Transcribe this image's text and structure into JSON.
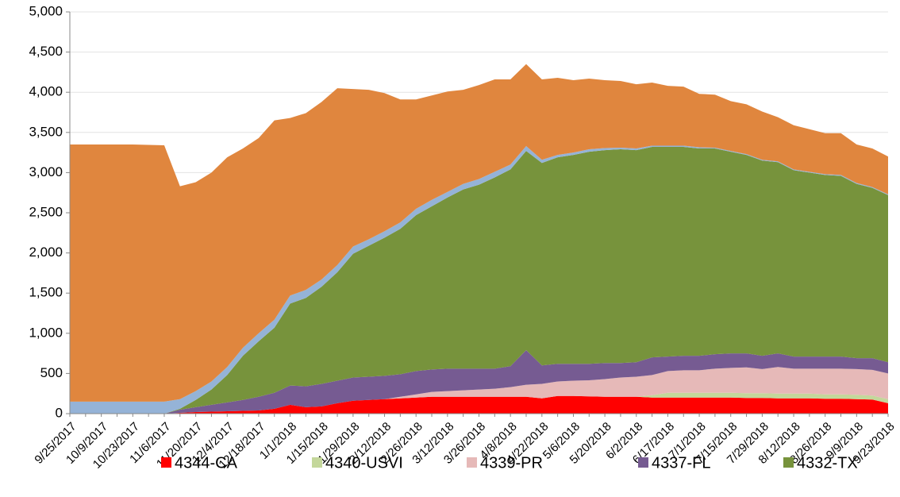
{
  "chart_data": {
    "type": "stacked_area",
    "categories": [
      "9/25/2017",
      null,
      "10/9/2017",
      null,
      "10/23/2017",
      null,
      "11/6/2017",
      null,
      "11/20/2017",
      null,
      "12/4/2017",
      null,
      "12/18/2017",
      null,
      "1/1/2018",
      null,
      "1/15/2018",
      null,
      "1/29/2018",
      null,
      "2/12/2018",
      null,
      "2/26/2018",
      null,
      "3/12/2018",
      null,
      "3/26/2018",
      null,
      "4/8/2018",
      null,
      "4/22/2018",
      null,
      "5/6/2018",
      null,
      "5/20/2018",
      null,
      "6/2/2018",
      null,
      "6/17/2018",
      null,
      "7/1/2018",
      null,
      "7/15/2018",
      null,
      "7/29/2018",
      null,
      "8/12/2018",
      null,
      "8/26/2018",
      null,
      "9/9/2018",
      null,
      "9/23/2018"
    ],
    "series": [
      {
        "name": "4344-CA",
        "color": "#ff0000",
        "values": [
          0,
          0,
          0,
          0,
          0,
          0,
          0,
          10,
          20,
          25,
          30,
          35,
          40,
          60,
          110,
          80,
          90,
          130,
          160,
          170,
          180,
          190,
          200,
          210,
          210,
          210,
          210,
          210,
          210,
          210,
          190,
          220,
          220,
          215,
          210,
          210,
          210,
          200,
          200,
          200,
          200,
          200,
          200,
          195,
          195,
          190,
          190,
          190,
          185,
          185,
          180,
          175,
          130
        ]
      },
      {
        "name": "4340-USVI",
        "color": "#c4d79b",
        "values": [
          0,
          0,
          0,
          0,
          0,
          0,
          0,
          0,
          0,
          0,
          0,
          0,
          0,
          0,
          0,
          0,
          0,
          0,
          0,
          0,
          0,
          0,
          0,
          0,
          0,
          0,
          0,
          0,
          0,
          0,
          0,
          0,
          0,
          0,
          0,
          0,
          0,
          30,
          60,
          60,
          60,
          60,
          60,
          60,
          60,
          60,
          60,
          60,
          55,
          55,
          55,
          50,
          50
        ]
      },
      {
        "name": "4339-PR",
        "color": "#e6b9b8",
        "values": [
          0,
          0,
          0,
          0,
          0,
          0,
          0,
          0,
          0,
          0,
          0,
          0,
          0,
          0,
          0,
          0,
          0,
          0,
          0,
          0,
          0,
          20,
          40,
          60,
          70,
          80,
          90,
          100,
          120,
          150,
          180,
          180,
          190,
          200,
          220,
          240,
          250,
          250,
          270,
          280,
          280,
          300,
          310,
          320,
          300,
          330,
          310,
          310,
          320,
          320,
          320,
          320,
          320
        ]
      },
      {
        "name": "4337-FL",
        "color": "#765b92",
        "values": [
          0,
          0,
          0,
          0,
          0,
          0,
          0,
          40,
          60,
          85,
          110,
          135,
          170,
          200,
          240,
          260,
          280,
          280,
          290,
          290,
          290,
          280,
          290,
          280,
          280,
          270,
          260,
          250,
          260,
          430,
          230,
          220,
          210,
          205,
          200,
          180,
          180,
          220,
          180,
          180,
          180,
          180,
          180,
          175,
          165,
          170,
          150,
          150,
          150,
          150,
          135,
          145,
          140
        ]
      },
      {
        "name": "4332-TX",
        "color": "#77933c",
        "values": [
          0,
          0,
          0,
          0,
          0,
          0,
          0,
          10,
          90,
          190,
          340,
          550,
          690,
          810,
          1020,
          1100,
          1210,
          1350,
          1540,
          1630,
          1720,
          1810,
          1940,
          2030,
          2130,
          2230,
          2290,
          2380,
          2450,
          2480,
          2520,
          2570,
          2600,
          2640,
          2650,
          2660,
          2640,
          2620,
          2610,
          2600,
          2580,
          2560,
          2510,
          2470,
          2430,
          2380,
          2320,
          2290,
          2260,
          2250,
          2170,
          2120,
          2080
        ]
      },
      {
        "color": "#95b3d7",
        "values": [
          150,
          150,
          150,
          150,
          150,
          150,
          150,
          120,
          110,
          100,
          100,
          100,
          100,
          100,
          100,
          100,
          90,
          90,
          90,
          80,
          80,
          80,
          80,
          80,
          70,
          70,
          70,
          70,
          60,
          60,
          40,
          30,
          30,
          30,
          25,
          20,
          20,
          15,
          15,
          15,
          15,
          10,
          10,
          10,
          10,
          10,
          10,
          10,
          10,
          10,
          10,
          10,
          10
        ]
      },
      {
        "color": "#e0863e",
        "values": [
          3200,
          3200,
          3200,
          3200,
          3200,
          3195,
          3190,
          2650,
          2600,
          2600,
          2610,
          2480,
          2430,
          2480,
          2210,
          2200,
          2210,
          2200,
          1960,
          1860,
          1720,
          1530,
          1360,
          1300,
          1250,
          1170,
          1170,
          1150,
          1060,
          1020,
          1000,
          960,
          900,
          880,
          845,
          830,
          800,
          785,
          745,
          735,
          665,
          660,
          620,
          620,
          600,
          550,
          550,
          530,
          510,
          520,
          480,
          480,
          470
        ]
      }
    ],
    "ylim": [
      0,
      5000
    ],
    "yticks": [
      0,
      500,
      {
        "value": 1000,
        "label": "1,000"
      },
      {
        "value": 1500,
        "label": "1,500"
      },
      {
        "value": 2000,
        "label": "2,000"
      },
      {
        "value": 2500,
        "label": "2,500"
      },
      {
        "value": 3000,
        "label": "3,000"
      },
      {
        "value": 3500,
        "label": "3,500"
      },
      {
        "value": 4000,
        "label": "4,000"
      },
      {
        "value": 4500,
        "label": "4,500"
      },
      {
        "value": 5000,
        "label": "5,000"
      }
    ],
    "grid": true
  }
}
